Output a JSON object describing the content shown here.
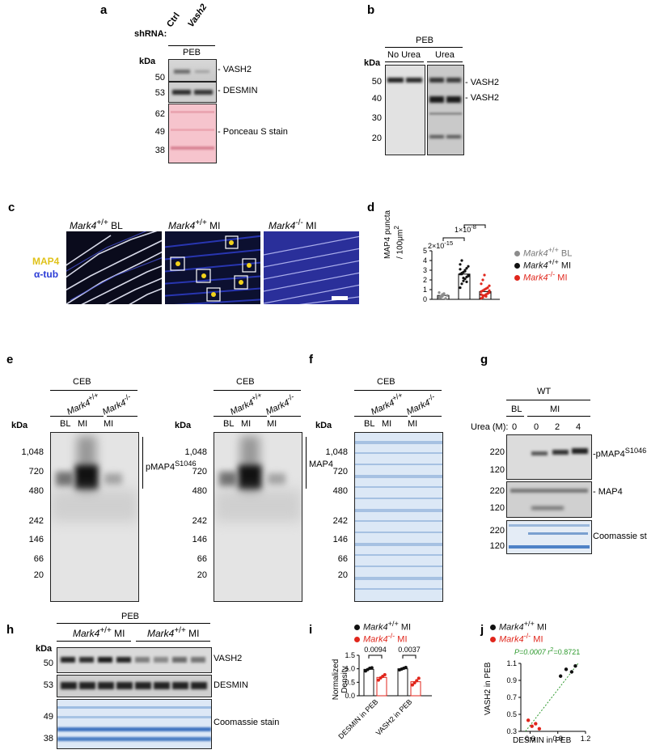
{
  "panels": {
    "a": "a",
    "b": "b",
    "c": "c",
    "d": "d",
    "e": "e",
    "f": "f",
    "g": "g",
    "h": "h",
    "i": "i",
    "j": "j"
  },
  "panel_a": {
    "shrna_label": "shRNA:",
    "lanes": [
      "Ctrl",
      "Vash2"
    ],
    "fraction": "PEB",
    "kda": "kDa",
    "markers": [
      "50",
      "53",
      "62",
      "49",
      "38"
    ],
    "bands": [
      "VASH2",
      "DESMIN",
      "Ponceau S stain"
    ]
  },
  "panel_b": {
    "fraction": "PEB",
    "groups": [
      "No Urea",
      "Urea"
    ],
    "kda": "kDa",
    "markers": [
      "50",
      "40",
      "30",
      "20"
    ],
    "bands": [
      "VASH2",
      "VASH2"
    ]
  },
  "panel_c": {
    "titles": [
      {
        "gene": "Mark4",
        "sup": "+/+",
        "cond": " BL"
      },
      {
        "gene": "Mark4",
        "sup": "+/+",
        "cond": " MI"
      },
      {
        "gene": "Mark4",
        "sup": "-/-",
        "cond": " MI"
      }
    ],
    "legend_map4": "MAP4",
    "legend_tub": "α-tub",
    "colors": {
      "map4": "#f2d21a",
      "tub": "#2a3bd6"
    }
  },
  "panel_d": {
    "ylabel_line1": "MAP4 puncta",
    "ylabel_line2": "/ 100μm",
    "ylabel_sup": "2",
    "p1": "2×10",
    "p1_exp": "-15",
    "p2": "1×10",
    "p2_exp": "-8",
    "legend": [
      {
        "gene": "Mark4",
        "sup": "+/+",
        "cond": " BL",
        "color": "#8c8c8c"
      },
      {
        "gene": "Mark4",
        "sup": "+/+",
        "cond": " MI",
        "color": "#111111"
      },
      {
        "gene": "Mark4",
        "sup": "-/-",
        "cond": " MI",
        "color": "#e0261c"
      }
    ]
  },
  "panel_e": {
    "fraction": "CEB",
    "kda": "kDa",
    "genos": [
      {
        "gene": "Mark4",
        "sup": "+/+"
      },
      {
        "gene": "Mark4",
        "sup": "-/-"
      }
    ],
    "lanes": [
      "BL",
      "MI",
      "MI"
    ],
    "markers": [
      "1,048",
      "720",
      "480",
      "242",
      "146",
      "66",
      "20"
    ],
    "label_left": "pMAP4",
    "label_left_sup": "S1046",
    "label_right": "MAP4"
  },
  "panel_f": {
    "fraction": "CEB",
    "kda": "kDa",
    "lanes": [
      "BL",
      "MI",
      "MI"
    ],
    "markers": [
      "1,048",
      "720",
      "480",
      "242",
      "146",
      "66",
      "20"
    ]
  },
  "panel_g": {
    "wt": "WT",
    "groups": [
      "BL",
      "MI"
    ],
    "urea_label": "Urea (M):",
    "urea": [
      "0",
      "0",
      "2",
      "4"
    ],
    "markers": [
      "220",
      "120",
      "220",
      "120",
      "220",
      "120"
    ],
    "bands": [
      "pMAP4",
      "MAP4",
      "Coomassie stain"
    ],
    "band1_sup": "S1046"
  },
  "panel_h": {
    "fraction": "PEB",
    "kda": "kDa",
    "groups": [
      {
        "gene": "Mark4",
        "sup": "+/+",
        "cond": " MI"
      },
      {
        "gene": "Mark4",
        "sup": "+/+",
        "cond": " MI"
      }
    ],
    "markers": [
      "50",
      "53",
      "49",
      "38"
    ],
    "bands": [
      "VASH2",
      "DESMIN",
      "Coomassie stain"
    ]
  },
  "panel_i": {
    "legend": [
      {
        "gene": "Mark4",
        "sup": "+/+",
        "cond": " MI",
        "color": "#111111"
      },
      {
        "gene": "Mark4",
        "sup": "-/-",
        "cond": " MI",
        "color": "#e0261c"
      }
    ],
    "ylabel": "Normalized Density",
    "pvals": [
      "0.0094",
      "0.0037"
    ],
    "xlabels": [
      "DESMIN in PEB",
      "VASH2 in PEB"
    ],
    "yticks": [
      "0.0",
      "0.5",
      "1.0",
      "1.5"
    ]
  },
  "panel_j": {
    "legend": [
      {
        "gene": "Mark4",
        "sup": "+/+",
        "cond": " MI",
        "color": "#111111"
      },
      {
        "gene": "Mark4",
        "sup": "-/-",
        "cond": " MI",
        "color": "#e0261c"
      }
    ],
    "stat": "P=0.0007  r",
    "stat_sup": "2",
    "stat_tail": "=0.8721",
    "stat_color": "#2e9a2e",
    "xlabel": "DESMIN in PEB",
    "ylabel": "VASH2 in PEB",
    "xticks": [
      "0.6",
      "0.9",
      "1.2"
    ],
    "yticks": [
      "0.3",
      "0.5",
      "0.7",
      "0.9",
      "1.1"
    ]
  },
  "chart_data": [
    {
      "type": "bar",
      "panel": "d",
      "categories": [
        "Mark4+/+ BL",
        "Mark4+/+ MI",
        "Mark4-/- MI"
      ],
      "values": [
        0.4,
        2.6,
        0.8
      ],
      "points": [
        [
          0.2,
          0.3,
          0.5,
          0.6,
          0.1,
          0.4,
          0.7,
          0.2,
          0.3,
          0.5
        ],
        [
          1.2,
          1.6,
          1.9,
          2.1,
          2.3,
          2.5,
          2.6,
          2.7,
          2.8,
          3.0,
          3.2,
          3.4,
          3.6,
          4.0,
          2.2,
          2.9,
          1.8,
          2.4,
          3.1,
          2.6
        ],
        [
          0.1,
          0.2,
          0.4,
          0.5,
          0.6,
          0.7,
          0.8,
          0.9,
          1.0,
          1.1,
          1.2,
          1.4,
          1.6,
          2.0,
          2.5,
          0.3,
          0.6,
          0.9,
          0.5,
          0.4
        ]
      ],
      "ylim": [
        0,
        5
      ],
      "yticks": [
        0,
        1,
        2,
        3,
        4,
        5
      ],
      "ylabel": "MAP4 puncta / 100μm2"
    },
    {
      "type": "bar",
      "panel": "i",
      "categories": [
        "DESMIN in PEB",
        "VASH2 in PEB"
      ],
      "series": [
        {
          "name": "Mark4+/+ MI",
          "values": [
            0.98,
            1.0
          ],
          "points": [
            [
              0.92,
              0.97,
              1.02,
              1.04
            ],
            [
              0.96,
              0.99,
              1.02,
              1.05
            ]
          ]
        },
        {
          "name": "Mark4-/- MI",
          "values": [
            0.68,
            0.52
          ],
          "points": [
            [
              0.58,
              0.66,
              0.72,
              0.78
            ],
            [
              0.4,
              0.48,
              0.56,
              0.65
            ]
          ]
        }
      ],
      "ylim": [
        0,
        1.5
      ],
      "yticks": [
        0.0,
        0.5,
        1.0,
        1.5
      ],
      "ylabel": "Normalized Density"
    },
    {
      "type": "scatter",
      "panel": "j",
      "series": [
        {
          "name": "Mark4+/+ MI",
          "x": [
            0.93,
            0.99,
            1.05,
            1.09
          ],
          "y": [
            0.95,
            1.03,
            1.0,
            1.07
          ]
        },
        {
          "name": "Mark4-/- MI",
          "x": [
            0.58,
            0.62,
            0.66,
            0.7
          ],
          "y": [
            0.43,
            0.36,
            0.39,
            0.33
          ]
        }
      ],
      "xlim": [
        0.5,
        1.2
      ],
      "ylim": [
        0.3,
        1.1
      ],
      "xticks": [
        0.6,
        0.9,
        1.2
      ],
      "yticks": [
        0.3,
        0.5,
        0.7,
        0.9,
        1.1
      ],
      "xlabel": "DESMIN in PEB",
      "ylabel": "VASH2 in PEB"
    }
  ]
}
